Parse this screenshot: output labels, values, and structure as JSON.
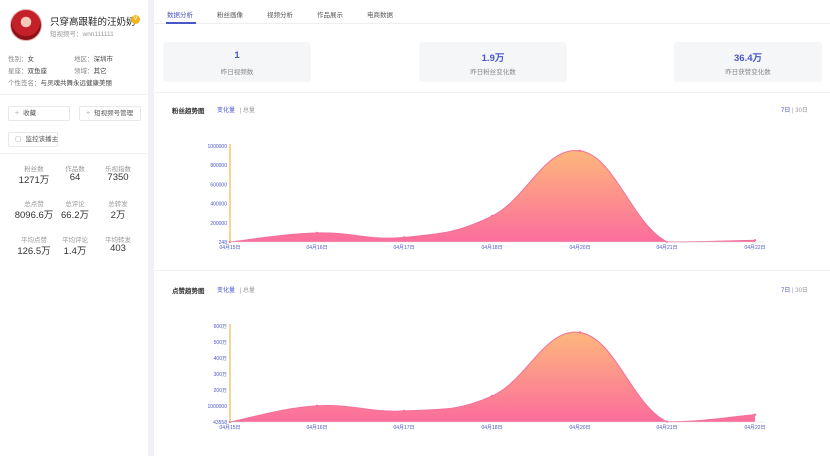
{
  "profile": {
    "name": "只穿高跟鞋的汪奶奶",
    "account_id": "短视频号：wnn111111",
    "verified_badge": "V",
    "gender_label": "性别：",
    "gender": "女",
    "region_label": "地区：",
    "region": "深圳市",
    "constellation_label": "星座：",
    "constellation": "双鱼座",
    "field_label": "领域：",
    "field": "其它",
    "signature_label": "个性签名：",
    "signature": "与灵魂共舞永远健康美丽"
  },
  "actions": {
    "favorite": "收藏",
    "manage": "短视频号管理",
    "monitor": "监控该播主"
  },
  "stats": [
    {
      "label": "粉丝数",
      "value": "1271万"
    },
    {
      "label": "作品数",
      "value": "64"
    },
    {
      "label": "乐视指数",
      "value": "7350"
    },
    {
      "label": "总点赞",
      "value": "8096.6万"
    },
    {
      "label": "总评论",
      "value": "66.2万"
    },
    {
      "label": "总转发",
      "value": "2万"
    },
    {
      "label": "平均点赞",
      "value": "126.5万"
    },
    {
      "label": "平均评论",
      "value": "1.4万"
    },
    {
      "label": "平均转发",
      "value": "403"
    }
  ],
  "tabs": [
    "数据分析",
    "粉丝画像",
    "视频分析",
    "作品展示",
    "电商数据"
  ],
  "summary": [
    {
      "value": "1",
      "label": "昨日视频数"
    },
    {
      "value": "1.9万",
      "label": "昨日粉丝变化数"
    },
    {
      "value": "36.4万",
      "label": "昨日获赞变化数"
    }
  ],
  "controls": {
    "change": "变化量",
    "total": "总量",
    "range_7": "7日",
    "range_sep": "|",
    "range_30": "30日"
  },
  "chart_data": [
    {
      "type": "area",
      "title": "粉丝趋势图",
      "x": [
        "04月15日",
        "04月16日",
        "04月17日",
        "04月18日",
        "04月20日",
        "04月21日",
        "04月22日"
      ],
      "values": [
        248,
        95000,
        48000,
        270000,
        950000,
        1000,
        18000
      ],
      "y_ticks": [
        "1000000",
        "800000",
        "600000",
        "400000",
        "200000",
        "248"
      ],
      "ylim": [
        248,
        1000000
      ],
      "colors": {
        "top": "#fdb77b",
        "bottom": "#fc6d9d",
        "line": "#f2709c",
        "axis": "#f5a623"
      }
    },
    {
      "type": "area",
      "title": "点赞趋势图",
      "x": [
        "04月15日",
        "04月16日",
        "04月17日",
        "04月18日",
        "04月20日",
        "04月21日",
        "04月22日"
      ],
      "values": [
        43558,
        1050000,
        730000,
        1650000,
        5600000,
        60000,
        500000
      ],
      "y_ticks": [
        "600万",
        "500万",
        "400万",
        "300万",
        "200万",
        "1000000",
        "43558"
      ],
      "ylim": [
        43558,
        6000000
      ],
      "colors": {
        "top": "#fdb77b",
        "bottom": "#fc6d9d",
        "line": "#f2709c",
        "axis": "#f5a623"
      }
    }
  ]
}
